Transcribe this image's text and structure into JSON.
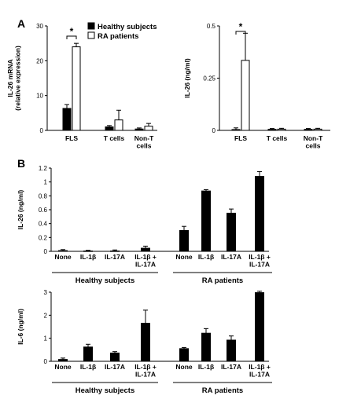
{
  "panel_labels": {
    "a": "A",
    "b": "B"
  },
  "legend": [
    {
      "label": "Healthy subjects",
      "fill": "#000000"
    },
    {
      "label": "RA patients",
      "fill": "#ffffff"
    }
  ],
  "chart_data": [
    {
      "type": "bar",
      "ylabel": "IL-26 mRNA\n(relative expression)",
      "categories": [
        "FLS",
        "T cells",
        "Non-T\ncells"
      ],
      "ylim": [
        0,
        30
      ],
      "yticks": [
        "0",
        "10",
        "20",
        "30"
      ],
      "series": [
        {
          "name": "Healthy subjects",
          "values": [
            6.3,
            1.0,
            0.4
          ],
          "errors": [
            1.1,
            0.4,
            0.3
          ]
        },
        {
          "name": "RA patients",
          "values": [
            24.0,
            3.0,
            1.2
          ],
          "errors": [
            1.0,
            2.8,
            0.8
          ]
        }
      ],
      "significance": [
        {
          "category": "FLS",
          "label": "*"
        }
      ]
    },
    {
      "type": "bar",
      "ylabel": "IL-26 (ng/ml)",
      "categories": [
        "FLS",
        "T cells",
        "Non-T\ncells"
      ],
      "ylim": [
        0,
        0.5
      ],
      "yticks": [
        "0",
        "0.25",
        "0.5"
      ],
      "series": [
        {
          "name": "Healthy subjects",
          "values": [
            0.004,
            0.005,
            0.005
          ],
          "errors": [
            0.008,
            0.004,
            0.004
          ]
        },
        {
          "name": "RA patients",
          "values": [
            0.335,
            0.006,
            0.006
          ],
          "errors": [
            0.13,
            0.004,
            0.004
          ]
        }
      ],
      "significance": [
        {
          "category": "FLS",
          "label": "*"
        }
      ]
    },
    {
      "type": "bar",
      "ylabel": "IL-26 (ng/ml)",
      "categories": [
        "None",
        "IL-1β",
        "IL-17A",
        "IL-1β +\nIL-17A",
        "None",
        "IL-1β",
        "IL-17A",
        "IL-1β +\nIL-17A"
      ],
      "values": [
        0.01,
        0.005,
        0.005,
        0.045,
        0.3,
        0.87,
        0.55,
        1.08
      ],
      "errors": [
        0.015,
        0.01,
        0.015,
        0.03,
        0.06,
        0.02,
        0.06,
        0.07
      ],
      "ylim": [
        0,
        1.2
      ],
      "yticks": [
        "0",
        "0.2",
        "0.4",
        "0.6",
        "0.8",
        "1",
        "1.2"
      ],
      "groups": [
        {
          "label": "Healthy subjects",
          "range": [
            0,
            3
          ]
        },
        {
          "label": "RA patients",
          "range": [
            4,
            7
          ]
        }
      ]
    },
    {
      "type": "bar",
      "ylabel": "IL-6 (ng/ml)",
      "categories": [
        "None",
        "IL-1β",
        "IL-17A",
        "IL-1β +\nIL-17A",
        "None",
        "IL-1β",
        "IL-17A",
        "IL-1β +\nIL-17A"
      ],
      "values": [
        0.08,
        0.62,
        0.36,
        1.65,
        0.55,
        1.22,
        0.92,
        2.98
      ],
      "errors": [
        0.06,
        0.12,
        0.06,
        0.57,
        0.05,
        0.2,
        0.18,
        0.06
      ],
      "ylim": [
        0,
        3
      ],
      "yticks": [
        "0",
        "1",
        "2",
        "3"
      ],
      "groups": [
        {
          "label": "Healthy subjects",
          "range": [
            0,
            3
          ]
        },
        {
          "label": "RA patients",
          "range": [
            4,
            7
          ]
        }
      ]
    }
  ]
}
